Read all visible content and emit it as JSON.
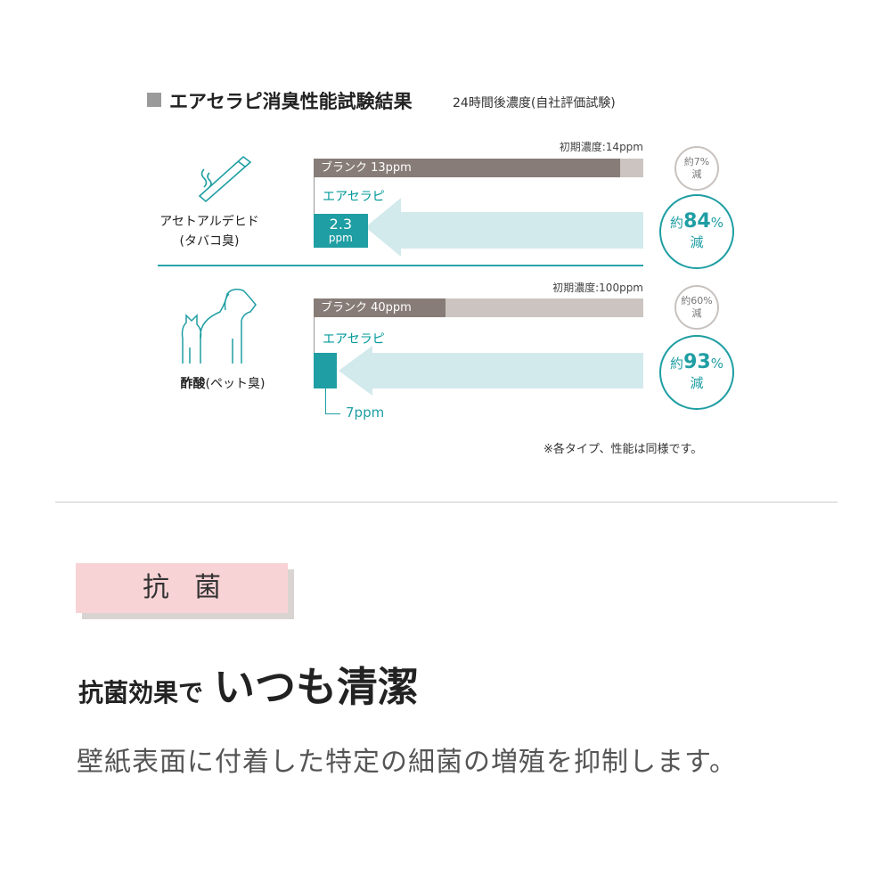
{
  "header": {
    "title": "エアセラピ消臭性能試験結果",
    "subtitle": "24時間後濃度(自社評価試験)"
  },
  "colors": {
    "blank": "#877c77",
    "blank_rest": "#cbc4c1",
    "air": "#1f9ea3",
    "arrow": "#d3eaed",
    "tag": "#f8d3d6"
  },
  "chart_data": {
    "type": "bar",
    "unit": "ppm",
    "groups": [
      {
        "category": "アセトアルデヒド",
        "category_sub": "(タバコ臭)",
        "icon": "cigarette-icon",
        "initial_label": "初期濃度:14ppm",
        "initial": 14,
        "blank": {
          "label": "ブランク 13ppm",
          "value": 13
        },
        "air_label": "エアセラピ",
        "air": {
          "value": 2.3,
          "label_value": "2.3",
          "label_unit": "ppm"
        },
        "blank_reduction": {
          "prefix": "約",
          "value": "7%",
          "suffix": "減"
        },
        "air_reduction": {
          "prefix": "約",
          "value": "84",
          "pct": "%",
          "suffix": "減"
        }
      },
      {
        "category": "酢酸",
        "category_sub": "(ペット臭)",
        "icon": "pet-icon",
        "initial_label": "初期濃度:100ppm",
        "initial": 100,
        "blank": {
          "label": "ブランク 40ppm",
          "value": 40
        },
        "air_label": "エアセラピ",
        "air": {
          "value": 7,
          "label_value": "7ppm"
        },
        "blank_reduction": {
          "prefix": "約",
          "value": "60%",
          "suffix": "減"
        },
        "air_reduction": {
          "prefix": "約",
          "value": "93",
          "pct": "%",
          "suffix": "減"
        }
      }
    ]
  },
  "note": "※各タイプ、性能は同様です。",
  "section": {
    "tag": "抗菌",
    "headline_small": "抗菌効果で",
    "headline_large": "いつも清潔",
    "description": "壁紙表面に付着した特定の細菌の増殖を抑制します。"
  }
}
